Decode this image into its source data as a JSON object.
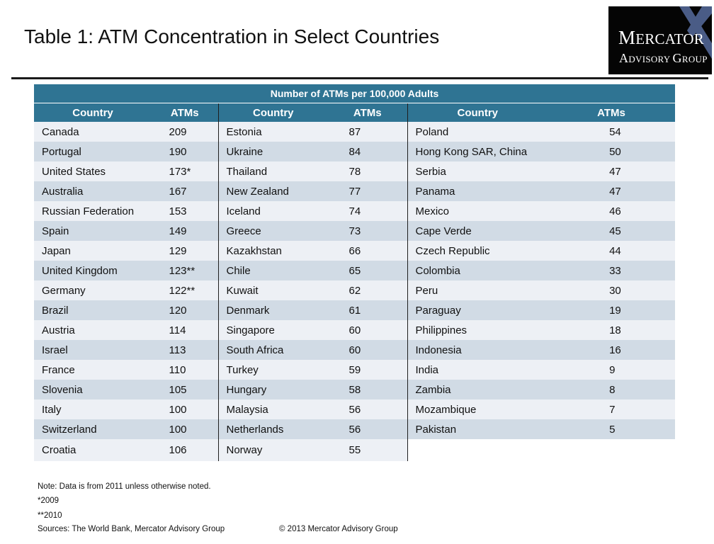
{
  "title": "Table 1: ATM Concentration in Select Countries",
  "logo": {
    "line1": "Mercator",
    "line2": "Advisory Group",
    "colors": {
      "background": "#050505",
      "accent": "#4a5c86",
      "text": "#ffffff"
    }
  },
  "table": {
    "banner": "Number of ATMs per 100,000 Adults",
    "headers": [
      "Country",
      "ATMs",
      "Country",
      "ATMs",
      "Country",
      "ATMs"
    ],
    "colors": {
      "header": "#2f7493",
      "row_light": "#edf0f5",
      "row_dark": "#d1dbe5"
    },
    "rows": [
      [
        "Canada",
        "209",
        "Estonia",
        "87",
        "Poland",
        "54"
      ],
      [
        "Portugal",
        "190",
        "Ukraine",
        "84",
        "Hong Kong SAR, China",
        "50"
      ],
      [
        "United States",
        "173*",
        "Thailand",
        "78",
        "Serbia",
        "47"
      ],
      [
        "Australia",
        "167",
        "New Zealand",
        "77",
        "Panama",
        "47"
      ],
      [
        "Russian Federation",
        "153",
        "Iceland",
        "74",
        "Mexico",
        "46"
      ],
      [
        "Spain",
        "149",
        "Greece",
        "73",
        "Cape Verde",
        "45"
      ],
      [
        "Japan",
        "129",
        "Kazakhstan",
        "66",
        "Czech Republic",
        "44"
      ],
      [
        "United Kingdom",
        "123**",
        "Chile",
        "65",
        "Colombia",
        "33"
      ],
      [
        "Germany",
        "122**",
        "Kuwait",
        "62",
        "Peru",
        "30"
      ],
      [
        "Brazil",
        "120",
        "Denmark",
        "61",
        "Paraguay",
        "19"
      ],
      [
        "Austria",
        "114",
        "Singapore",
        "60",
        "Philippines",
        "18"
      ],
      [
        "Israel",
        "113",
        "South Africa",
        "60",
        "Indonesia",
        "16"
      ],
      [
        "France",
        "110",
        "Turkey",
        "59",
        "India",
        "9"
      ],
      [
        "Slovenia",
        "105",
        "Hungary",
        "58",
        "Zambia",
        "8"
      ],
      [
        "Italy",
        "100",
        "Malaysia",
        "56",
        "Mozambique",
        "7"
      ],
      [
        "Switzerland",
        "100",
        "Netherlands",
        "56",
        "Pakistan",
        "5"
      ],
      [
        "Croatia",
        "106",
        "Norway",
        "55",
        "",
        ""
      ]
    ]
  },
  "notes": {
    "note": "Note: Data is from 2011  unless otherwise noted.",
    "one_star": "*2009",
    "two_star": "**2010",
    "sources": "Sources: The World Bank, Mercator Advisory Group",
    "copyright": "© 2013 Mercator Advisory Group"
  }
}
